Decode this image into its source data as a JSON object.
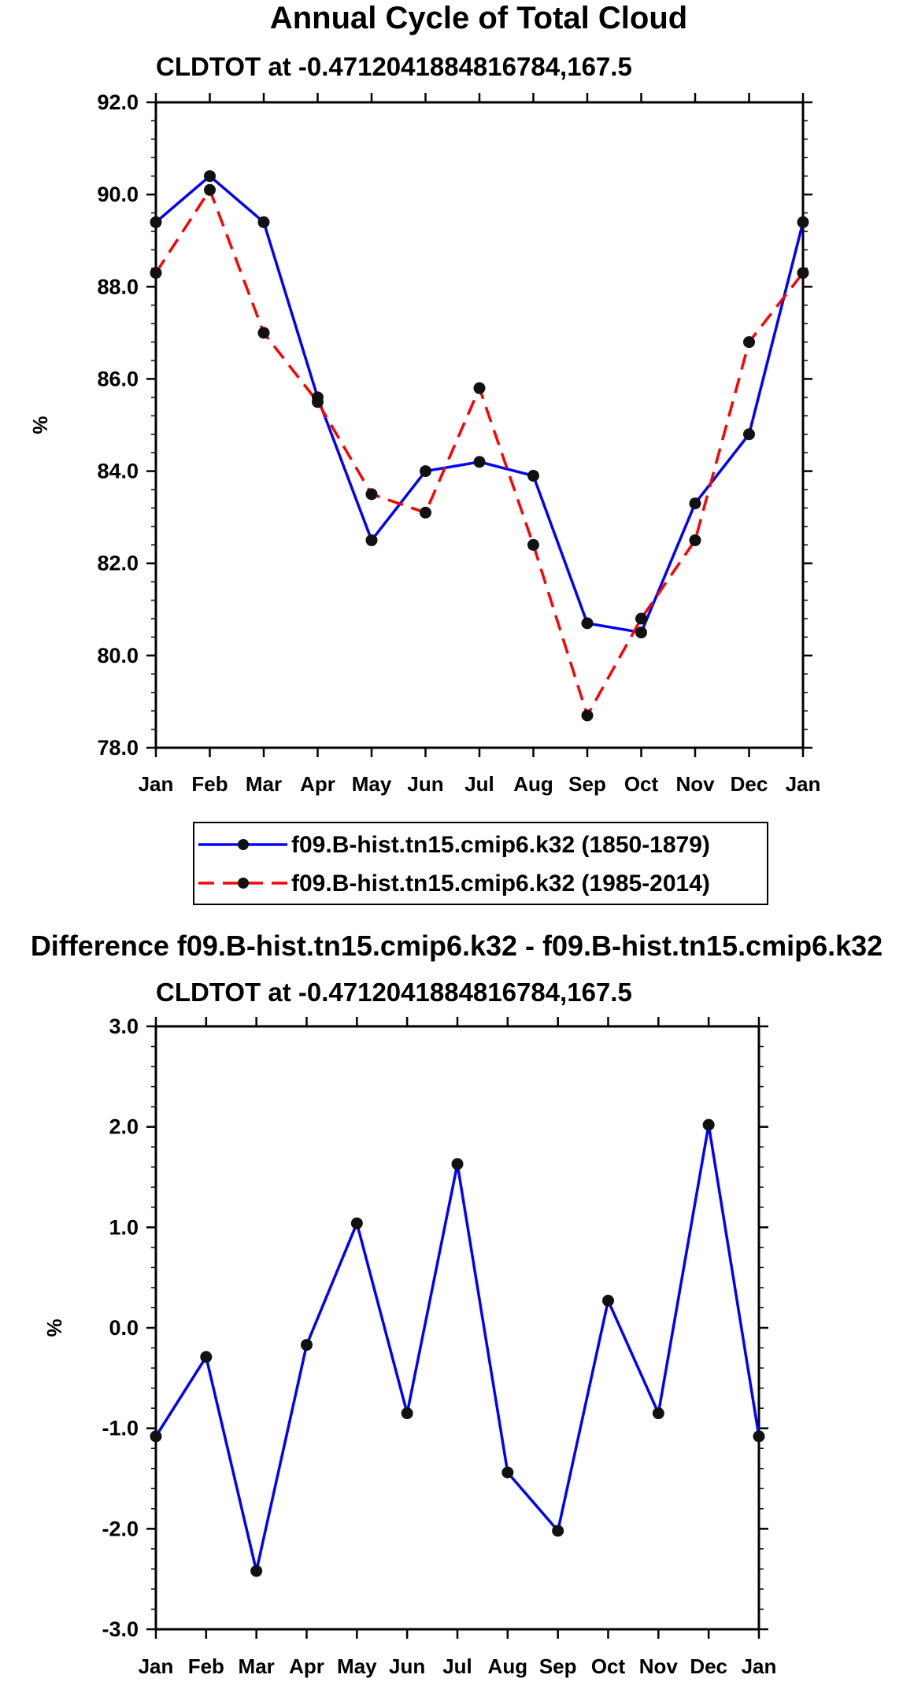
{
  "chart_data": [
    {
      "type": "line",
      "title": "Annual Cycle of Total Cloud",
      "subtitle": "CLDTOT at -0.4712041884816784,167.5",
      "ylabel": "%",
      "xlabel": "",
      "ylim": [
        78.0,
        92.0
      ],
      "yticks": [
        "78.0",
        "80.0",
        "82.0",
        "84.0",
        "86.0",
        "88.0",
        "90.0",
        "92.0"
      ],
      "yticks_values": [
        78,
        80,
        82,
        84,
        86,
        88,
        90,
        92
      ],
      "categories": [
        "Jan",
        "Feb",
        "Mar",
        "Apr",
        "May",
        "Jun",
        "Jul",
        "Aug",
        "Sep",
        "Oct",
        "Nov",
        "Dec",
        "Jan"
      ],
      "series": [
        {
          "name": "f09.B-hist.tn15.cmip6.k32 (1850-1879)",
          "color": "#0000ff",
          "dash": "solid",
          "values": [
            89.4,
            90.4,
            89.4,
            85.6,
            82.5,
            84.0,
            84.2,
            83.9,
            80.7,
            80.5,
            83.3,
            84.8,
            89.4
          ]
        },
        {
          "name": "f09.B-hist.tn15.cmip6.k32 (1985-2014)",
          "color": "#ff0000",
          "dash": "dashed",
          "values": [
            88.3,
            90.1,
            87.0,
            85.5,
            83.5,
            83.1,
            85.8,
            82.4,
            78.7,
            80.8,
            82.5,
            86.8,
            88.3
          ]
        }
      ]
    },
    {
      "type": "line",
      "title": "Difference f09.B-hist.tn15.cmip6.k32 - f09.B-hist.tn15.cmip6.k32",
      "subtitle": "CLDTOT at -0.4712041884816784,167.5",
      "ylabel": "%",
      "xlabel": "",
      "ylim": [
        -3.0,
        3.0
      ],
      "yticks": [
        "-3.0",
        "-2.0",
        "-1.0",
        "0.0",
        "1.0",
        "2.0",
        "3.0"
      ],
      "yticks_values": [
        -3,
        -2,
        -1,
        0,
        1,
        2,
        3
      ],
      "categories": [
        "Jan",
        "Feb",
        "Mar",
        "Apr",
        "May",
        "Jun",
        "Jul",
        "Aug",
        "Sep",
        "Oct",
        "Nov",
        "Dec",
        "Jan"
      ],
      "series": [
        {
          "name": "difference",
          "color": "#0000ff",
          "dash": "solid",
          "values": [
            -1.08,
            -0.29,
            -2.42,
            -0.17,
            1.04,
            -0.85,
            1.63,
            -1.44,
            -2.02,
            0.27,
            -0.85,
            2.02,
            -1.08
          ]
        }
      ]
    }
  ]
}
